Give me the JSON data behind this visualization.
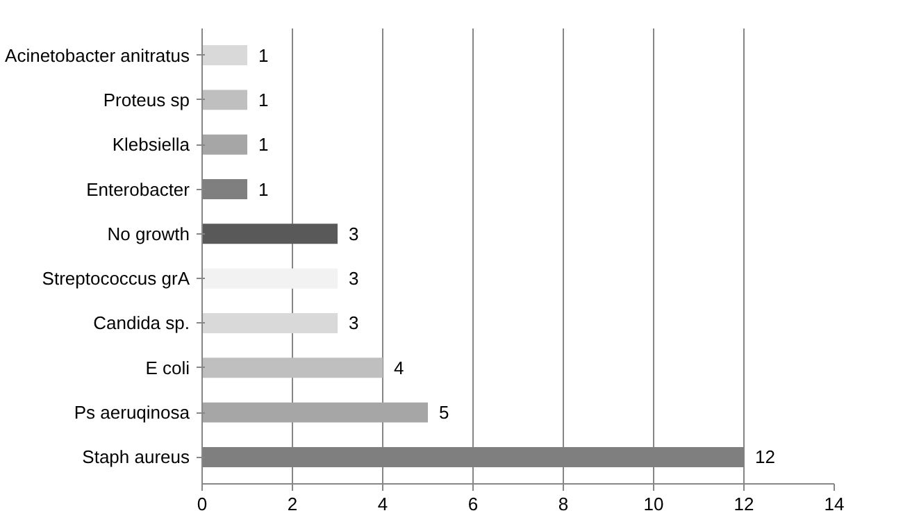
{
  "chart_data": {
    "type": "bar",
    "orientation": "horizontal",
    "categories": [
      "Acinetobacter anitratus",
      "Proteus sp",
      "Klebsiella",
      "Enterobacter",
      "No growth",
      "Streptococcus grA",
      "Candida sp.",
      "E coli",
      "Ps aeruqinosa",
      "Staph aureus"
    ],
    "values": [
      1,
      1,
      1,
      1,
      3,
      3,
      3,
      4,
      5,
      12
    ],
    "colors": [
      "#d9d9d9",
      "#bfbfbf",
      "#a6a6a6",
      "#7f7f7f",
      "#595959",
      "#f2f2f2",
      "#d9d9d9",
      "#bfbfbf",
      "#a6a6a6",
      "#7f7f7f"
    ],
    "xlim": [
      0,
      14
    ],
    "xticks": [
      0,
      2,
      4,
      6,
      8,
      10,
      12,
      14
    ],
    "grid": "x",
    "data_labels": true
  }
}
